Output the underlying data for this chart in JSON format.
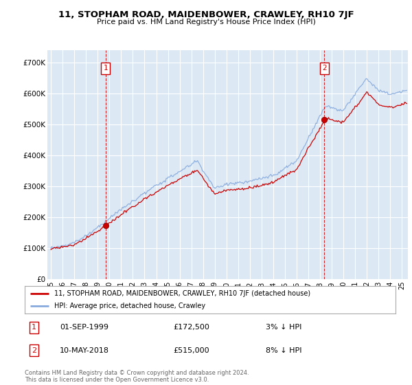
{
  "title": "11, STOPHAM ROAD, MAIDENBOWER, CRAWLEY, RH10 7JF",
  "subtitle": "Price paid vs. HM Land Registry's House Price Index (HPI)",
  "ylabel_ticks": [
    "£0",
    "£100K",
    "£200K",
    "£300K",
    "£400K",
    "£500K",
    "£600K",
    "£700K"
  ],
  "ytick_values": [
    0,
    100000,
    200000,
    300000,
    400000,
    500000,
    600000,
    700000
  ],
  "ylim": [
    0,
    740000
  ],
  "sale1_x": 1999.67,
  "sale1_y": 172500,
  "sale2_x": 2018.36,
  "sale2_y": 515000,
  "house_color": "#cc0000",
  "hpi_color": "#88aadd",
  "vline_color": "#cc0000",
  "legend_house": "11, STOPHAM ROAD, MAIDENBOWER, CRAWLEY, RH10 7JF (detached house)",
  "legend_hpi": "HPI: Average price, detached house, Crawley",
  "annotation1_date": "01-SEP-1999",
  "annotation1_price": "£172,500",
  "annotation1_pct": "3% ↓ HPI",
  "annotation2_date": "10-MAY-2018",
  "annotation2_price": "£515,000",
  "annotation2_pct": "8% ↓ HPI",
  "footer": "Contains HM Land Registry data © Crown copyright and database right 2024.\nThis data is licensed under the Open Government Licence v3.0.",
  "bg_color": "#ffffff",
  "plot_bg_color": "#dce9f5",
  "grid_color": "#ffffff",
  "xlim_start": 1994.7,
  "xlim_end": 2025.5
}
